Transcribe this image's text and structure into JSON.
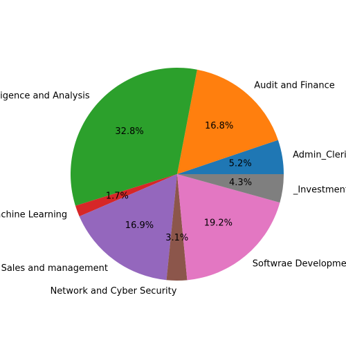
{
  "chart_data": {
    "type": "pie",
    "title": "",
    "start_angle_deg": 0,
    "direction": "counterclockwise",
    "slices": [
      {
        "label": "Admin_Clerical",
        "value": 5.2,
        "pct_label": "5.2%",
        "color": "#1f77b4"
      },
      {
        "label": "Audit and Finance",
        "value": 16.8,
        "pct_label": "16.8%",
        "color": "#ff7f0e"
      },
      {
        "label": "Business Intelligence and Analysis",
        "value": 32.8,
        "pct_label": "32.8%",
        "color": "#2ca02c"
      },
      {
        "label": "AI and Machine Learning",
        "value": 1.7,
        "pct_label": "1.7%",
        "color": "#d62728"
      },
      {
        "label": "Sales and management",
        "value": 16.9,
        "pct_label": "16.9%",
        "color": "#9467bd"
      },
      {
        "label": "Network and Cyber Security",
        "value": 3.1,
        "pct_label": "3.1%",
        "color": "#8c564b"
      },
      {
        "label": "Softwrae Development",
        "value": 19.2,
        "pct_label": "19.2%",
        "color": "#e377c2"
      },
      {
        "label": "_Investment",
        "value": 4.3,
        "pct_label": "4.3%",
        "color": "#7f7f7f"
      }
    ]
  }
}
